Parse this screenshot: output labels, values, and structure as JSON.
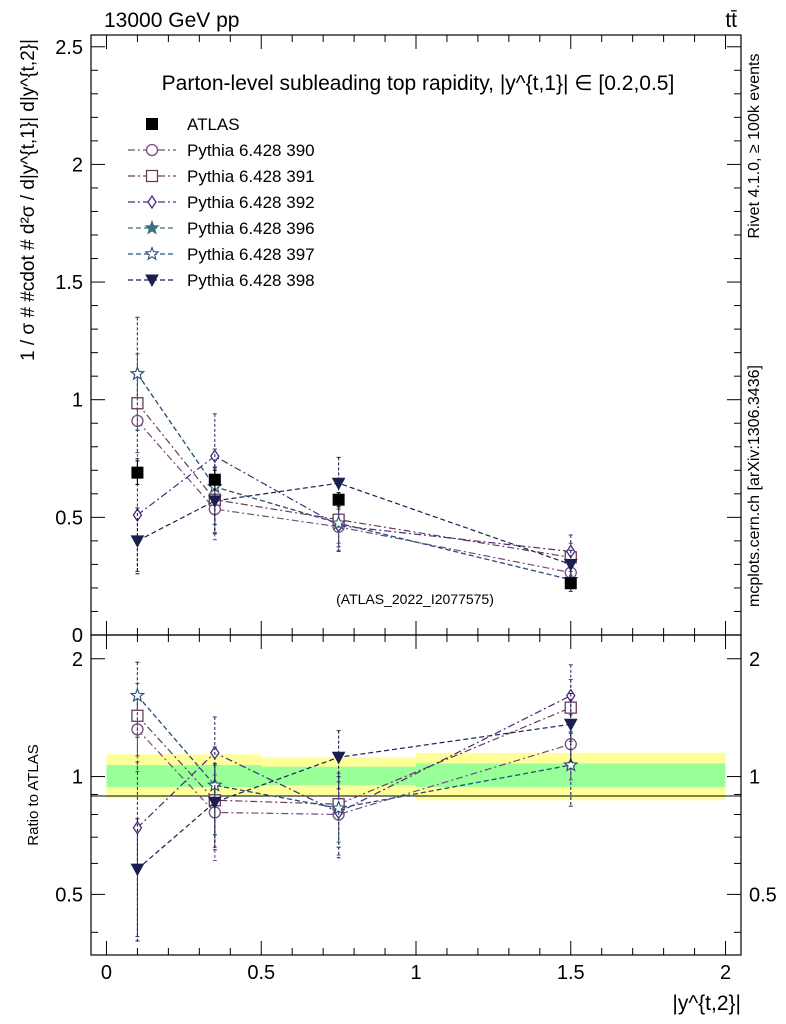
{
  "header": {
    "energy_label": "13000 GeV pp",
    "process_label": "tt̄",
    "rivet_label": "Rivet 4.1.0, ≥ 100k events",
    "mcplots_label": "mcplots.cern.ch [arXiv:1306.3436]"
  },
  "chart_data": [
    {
      "type": "scatter",
      "panel": "main",
      "title": "Parton-level subleading top rapidity, |y^{t,1}| ∈ [0.2,0.5]",
      "watermark": "(ATLAS_2022_I2077575)",
      "xlabel": "|y^{t,2}|",
      "ylabel": "1 / σ # #cdot # d²σ / d|y^{t,1}| d|y^{t,2}|",
      "xlim": [
        -0.05,
        2.05
      ],
      "ylim": [
        0,
        2.55
      ],
      "yticks": [
        0,
        0.5,
        1,
        1.5,
        2,
        2.5
      ],
      "ytick_labels": [
        "0",
        "0.5",
        "1",
        "1.5",
        "2",
        "2.5"
      ],
      "x": [
        0.1,
        0.35,
        0.75,
        1.5
      ],
      "reference": {
        "name": "ATLAS",
        "color": "#000000",
        "marker": "filled-square",
        "values": [
          0.69,
          0.66,
          0.575,
          0.22
        ],
        "errors": [
          0.05,
          0.04,
          0.03,
          0.02
        ],
        "bin_edges": [
          [
            0.0,
            0.2
          ],
          [
            0.2,
            0.5
          ],
          [
            0.5,
            1.0
          ],
          [
            1.0,
            2.0
          ]
        ]
      },
      "series": [
        {
          "name": "Pythia 6.428 390",
          "color": "#7a4a7f",
          "marker": "open-circle",
          "dash": "dashdot",
          "values": [
            0.91,
            0.535,
            0.46,
            0.265
          ],
          "errors": [
            0.2,
            0.13,
            0.1,
            0.05
          ]
        },
        {
          "name": "Pythia 6.428 391",
          "color": "#6b3b59",
          "marker": "open-square",
          "dash": "dashdot",
          "values": [
            0.985,
            0.575,
            0.49,
            0.33
          ],
          "errors": [
            0.21,
            0.14,
            0.1,
            0.06
          ]
        },
        {
          "name": "Pythia 6.428 392",
          "color": "#4b2a7a",
          "marker": "open-diamond",
          "dash": "dashdot",
          "values": [
            0.51,
            0.76,
            0.465,
            0.355
          ],
          "errors": [
            0.24,
            0.18,
            0.11,
            0.07
          ]
        },
        {
          "name": "Pythia 6.428 396",
          "color": "#3d6f80",
          "marker": "star",
          "dash": "dashed",
          "values": [
            1.11,
            0.63,
            0.475,
            0.235
          ],
          "errors": [
            0.24,
            0.16,
            0.1,
            0.05
          ]
        },
        {
          "name": "Pythia 6.428 397",
          "color": "#2e5178",
          "marker": "open-star",
          "dash": "dashed",
          "values": [
            1.11,
            0.63,
            0.475,
            0.235
          ],
          "errors": [
            0.24,
            0.16,
            0.1,
            0.05
          ]
        },
        {
          "name": "Pythia 6.428 398",
          "color": "#1b1f4f",
          "marker": "filled-triangle-down",
          "dash": "dashed",
          "values": [
            0.4,
            0.57,
            0.645,
            0.3
          ],
          "errors": [
            0.14,
            0.14,
            0.11,
            0.06
          ]
        }
      ]
    },
    {
      "type": "scatter",
      "panel": "ratio",
      "ylabel": "Ratio to ATLAS",
      "xlabel": "|y^{t,2}|",
      "xlim": [
        -0.05,
        2.05
      ],
      "ylim": [
        0.35,
        2.3
      ],
      "yticks": [
        0.5,
        1,
        2
      ],
      "ytick_labels": [
        "0.5",
        "1",
        "2"
      ],
      "xticks": [
        0,
        0.5,
        1,
        1.5,
        2
      ],
      "xtick_labels": [
        "0",
        "0.5",
        "1",
        "1.5",
        "2"
      ],
      "x": [
        0.1,
        0.35,
        0.75,
        1.5
      ],
      "bands": {
        "bin_edges": [
          [
            0.0,
            0.2
          ],
          [
            0.2,
            0.5
          ],
          [
            0.5,
            1.0
          ],
          [
            1.0,
            2.0
          ]
        ],
        "stat_lo": [
          0.94,
          0.94,
          0.95,
          0.94
        ],
        "stat_hi": [
          1.07,
          1.07,
          1.06,
          1.08
        ],
        "total_lo": [
          0.88,
          0.89,
          0.89,
          0.87
        ],
        "total_hi": [
          1.14,
          1.14,
          1.12,
          1.15
        ],
        "stat_color": "#99ff99",
        "total_color": "#ffff99"
      },
      "series": [
        {
          "name": "Pythia 6.428 390",
          "values": [
            1.32,
            0.81,
            0.8,
            1.21
          ],
          "errors": [
            0.29,
            0.2,
            0.17,
            0.23
          ]
        },
        {
          "name": "Pythia 6.428 391",
          "values": [
            1.43,
            0.87,
            0.85,
            1.5
          ],
          "errors": [
            0.3,
            0.21,
            0.17,
            0.27
          ]
        },
        {
          "name": "Pythia 6.428 392",
          "values": [
            0.74,
            1.15,
            0.81,
            1.61
          ],
          "errors": [
            0.35,
            0.27,
            0.19,
            0.32
          ]
        },
        {
          "name": "Pythia 6.428 396",
          "values": [
            1.61,
            0.95,
            0.83,
            1.07
          ],
          "errors": [
            0.35,
            0.24,
            0.17,
            0.23
          ]
        },
        {
          "name": "Pythia 6.428 397",
          "values": [
            1.61,
            0.95,
            0.83,
            1.07
          ],
          "errors": [
            0.35,
            0.24,
            0.17,
            0.23
          ]
        },
        {
          "name": "Pythia 6.428 398",
          "values": [
            0.58,
            0.86,
            1.12,
            1.36
          ],
          "errors": [
            0.2,
            0.21,
            0.19,
            0.27
          ]
        }
      ]
    }
  ]
}
